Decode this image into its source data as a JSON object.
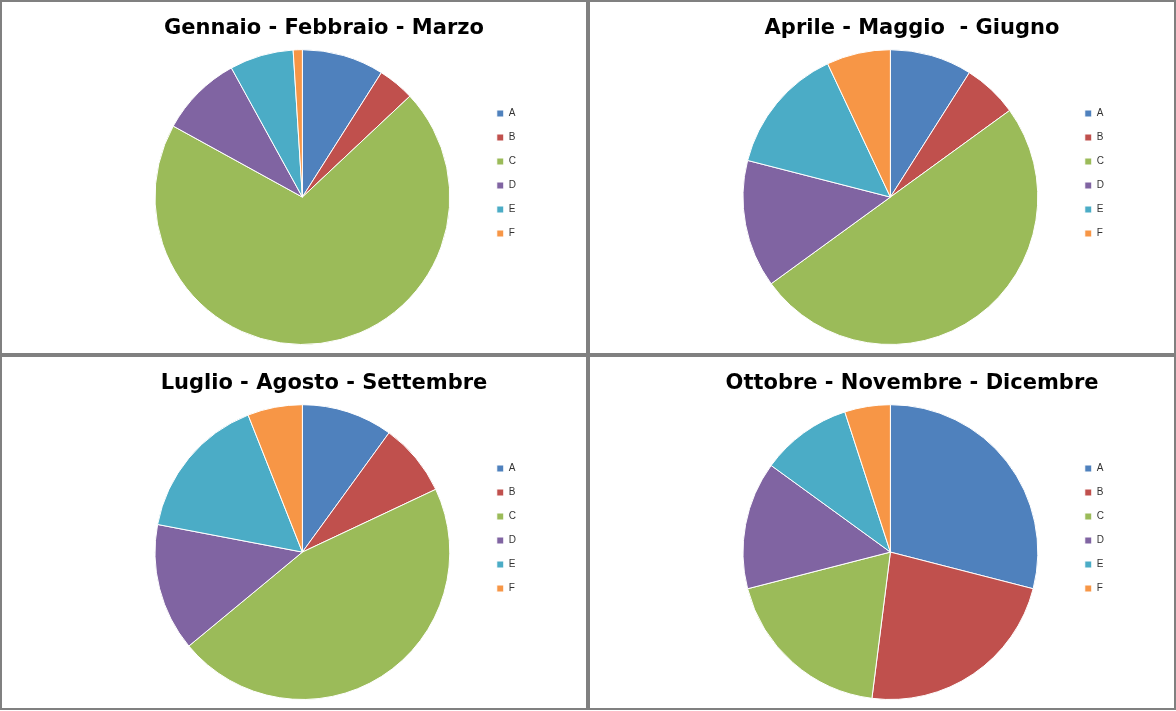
{
  "chart_data": [
    {
      "type": "pie",
      "title": "Gennaio - Febbraio - Marzo",
      "categories": [
        "A",
        "B",
        "C",
        "D",
        "E",
        "F"
      ],
      "values": [
        9,
        4,
        70,
        9,
        7,
        1
      ],
      "colors": [
        "#4f81bd",
        "#c0504d",
        "#9bbb59",
        "#8064a2",
        "#4bacc6",
        "#f79646"
      ],
      "legend": "right"
    },
    {
      "type": "pie",
      "title": "Aprile - Maggio  - Giugno",
      "categories": [
        "A",
        "B",
        "C",
        "D",
        "E",
        "F"
      ],
      "values": [
        9,
        6,
        50,
        14,
        14,
        7
      ],
      "colors": [
        "#4f81bd",
        "#c0504d",
        "#9bbb59",
        "#8064a2",
        "#4bacc6",
        "#f79646"
      ],
      "legend": "right"
    },
    {
      "type": "pie",
      "title": "Luglio - Agosto - Settembre",
      "categories": [
        "A",
        "B",
        "C",
        "D",
        "E",
        "F"
      ],
      "values": [
        10,
        8,
        46,
        14,
        16,
        6
      ],
      "colors": [
        "#4f81bd",
        "#c0504d",
        "#9bbb59",
        "#8064a2",
        "#4bacc6",
        "#f79646"
      ],
      "legend": "right"
    },
    {
      "type": "pie",
      "title": "Ottobre - Novembre - Dicembre",
      "categories": [
        "A",
        "B",
        "C",
        "D",
        "E",
        "F"
      ],
      "values": [
        29,
        23,
        19,
        14,
        10,
        5
      ],
      "colors": [
        "#4f81bd",
        "#c0504d",
        "#9bbb59",
        "#8064a2",
        "#4bacc6",
        "#f79646"
      ],
      "legend": "right"
    }
  ]
}
